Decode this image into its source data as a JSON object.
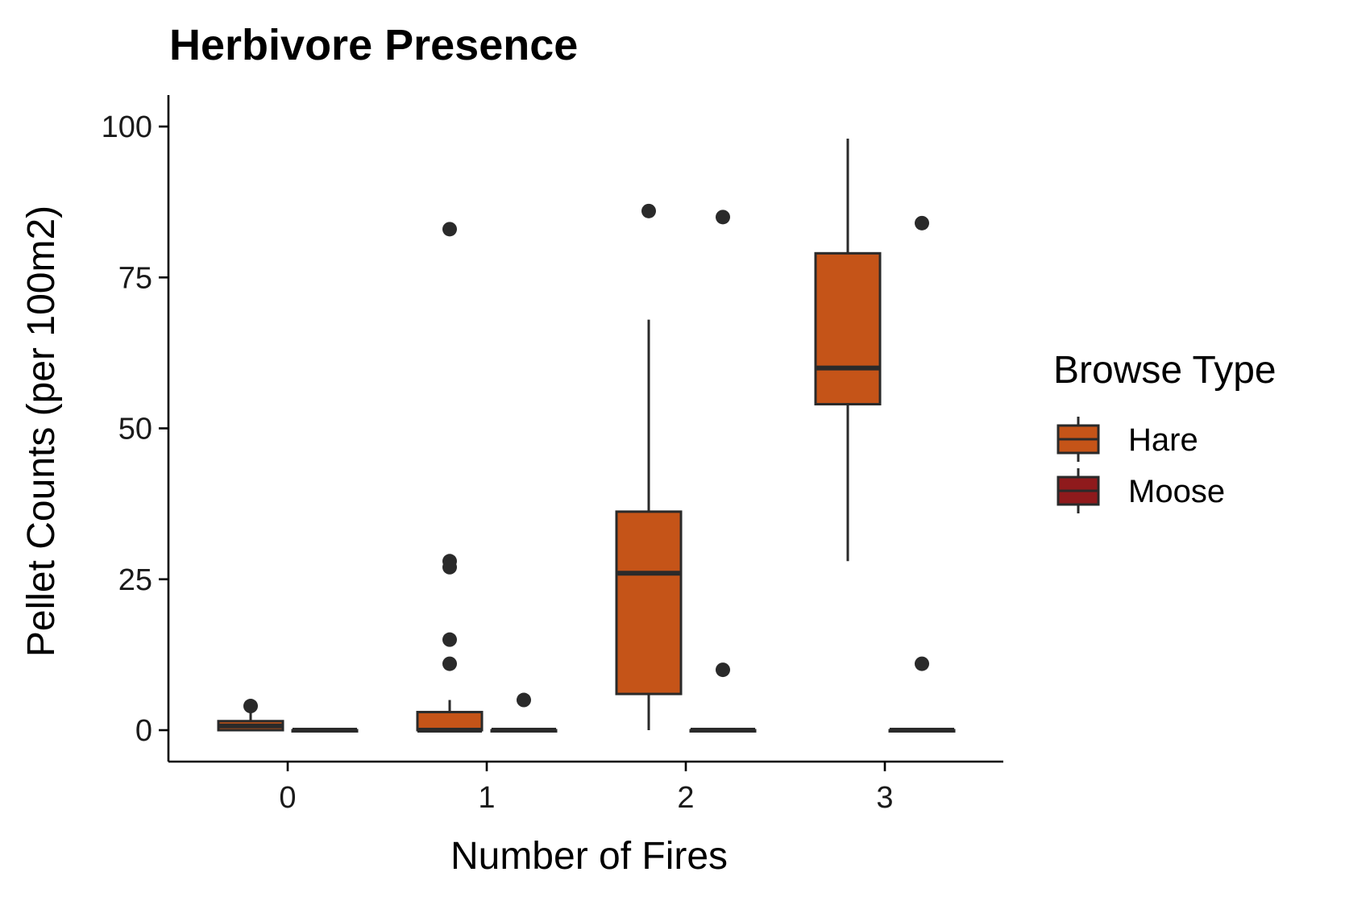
{
  "chart_data": {
    "type": "box",
    "title": "Herbivore Presence",
    "xlabel": "Number of Fires",
    "ylabel": "Pellet Counts (per 100m2)",
    "categories": [
      "0",
      "1",
      "2",
      "3"
    ],
    "ylim": [
      -5,
      105
    ],
    "yticks": [
      0,
      25,
      50,
      75,
      100
    ],
    "grid": false,
    "legend": {
      "title": "Browse Type",
      "position": "right",
      "entries": [
        "Hare",
        "Moose"
      ]
    },
    "colors": {
      "Hare": "#c55418",
      "Moose": "#8f1a1c",
      "outline": "#2a2a2a"
    },
    "series": [
      {
        "name": "Hare",
        "boxes": [
          {
            "category": "0",
            "low": 0,
            "q1": 0,
            "median": 0.7,
            "q3": 1.5,
            "high": 3,
            "outliers": [
              4
            ]
          },
          {
            "category": "1",
            "low": 0,
            "q1": 0,
            "median": 0,
            "q3": 3,
            "high": 5,
            "outliers": [
              83,
              28,
              27,
              15,
              11
            ]
          },
          {
            "category": "2",
            "low": 0,
            "q1": 6,
            "median": 26,
            "q3": 36.2,
            "high": 68,
            "outliers": [
              86
            ]
          },
          {
            "category": "3",
            "low": 28,
            "q1": 54,
            "median": 60,
            "q3": 79,
            "high": 98,
            "outliers": []
          }
        ]
      },
      {
        "name": "Moose",
        "boxes": [
          {
            "category": "0",
            "low": 0,
            "q1": 0,
            "median": 0,
            "q3": 0,
            "high": 0,
            "outliers": []
          },
          {
            "category": "1",
            "low": 0,
            "q1": 0,
            "median": 0,
            "q3": 0,
            "high": 0,
            "outliers": [
              5
            ]
          },
          {
            "category": "2",
            "low": 0,
            "q1": 0,
            "median": 0,
            "q3": 0,
            "high": 0,
            "outliers": [
              85,
              10
            ]
          },
          {
            "category": "3",
            "low": 0,
            "q1": 0,
            "median": 0,
            "q3": 0,
            "high": 0,
            "outliers": [
              84,
              11
            ]
          }
        ]
      }
    ]
  }
}
